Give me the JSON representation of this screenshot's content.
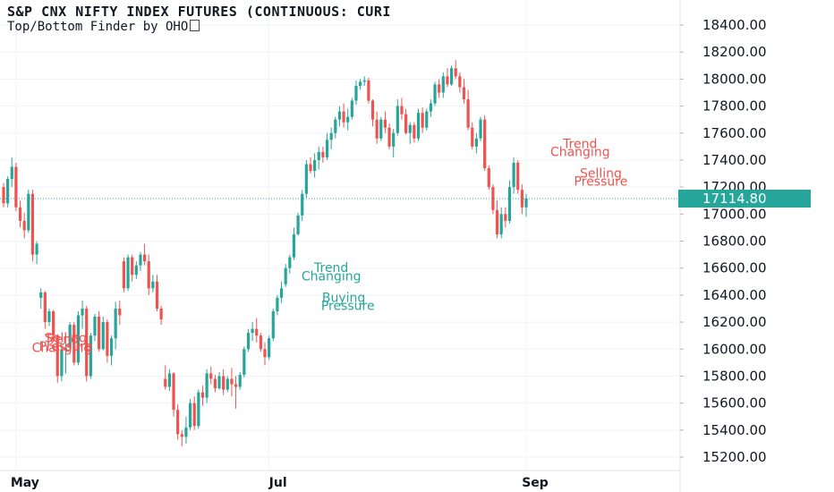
{
  "header": {
    "title": "S&P CNX NIFTY INDEX FUTURES (CONTINUOUS: CURI",
    "subtitle": "Top/Bottom Finder by OHO"
  },
  "colors": {
    "up": "#26a69a",
    "down": "#ef5350",
    "grid": "#f0f3fa",
    "axis_border": "#e0e3eb",
    "price_line": "#26a69a"
  },
  "chart_data": {
    "type": "candlestick",
    "y_axis": {
      "ticks": [
        15200,
        15400,
        15600,
        15800,
        16000,
        16200,
        16400,
        16600,
        16800,
        17000,
        17200,
        17400,
        17600,
        17800,
        18000,
        18200,
        18400
      ],
      "tick_labels": [
        "15200.00",
        "15400.00",
        "15600.00",
        "15800.00",
        "16000.00",
        "16200.00",
        "16400.00",
        "16600.00",
        "16800.00",
        "17000.00",
        "17200.00",
        "17400.00",
        "17600.00",
        "17800.00",
        "18000.00",
        "18200.00",
        "18400.00"
      ],
      "range": [
        15130,
        18490
      ],
      "side": "right"
    },
    "x_axis": {
      "labels": [
        {
          "label": "May",
          "index": 3
        },
        {
          "label": "Jul",
          "index": 64
        },
        {
          "label": "Sep",
          "index": 126
        }
      ]
    },
    "current_price": {
      "value": 17114.8,
      "label": "17114.80"
    },
    "candles": [
      [
        17200,
        17230,
        17050,
        17080
      ],
      [
        17080,
        17280,
        17050,
        17260
      ],
      [
        17260,
        17420,
        17200,
        17350
      ],
      [
        17350,
        17380,
        17020,
        17050
      ],
      [
        17050,
        17100,
        16900,
        16950
      ],
      [
        16950,
        17010,
        16820,
        16880
      ],
      [
        16880,
        17180,
        16860,
        17150
      ],
      [
        17150,
        17180,
        16650,
        16700
      ],
      [
        16700,
        16800,
        16630,
        16780
      ],
      [
        16380,
        16450,
        16300,
        16420
      ],
      [
        16420,
        16430,
        16150,
        16200
      ],
      [
        16200,
        16300,
        16170,
        16280
      ],
      [
        16280,
        16290,
        16050,
        16100
      ],
      [
        16100,
        16110,
        15750,
        15800
      ],
      [
        15800,
        16020,
        15760,
        15990
      ],
      [
        15990,
        16050,
        15820,
        16010
      ],
      [
        16010,
        16200,
        15990,
        16180
      ],
      [
        16180,
        16200,
        15880,
        15900
      ],
      [
        15900,
        16280,
        15880,
        16250
      ],
      [
        16250,
        16360,
        16150,
        16300
      ],
      [
        16300,
        16320,
        15760,
        15800
      ],
      [
        15800,
        16120,
        15780,
        16100
      ],
      [
        16100,
        16260,
        16060,
        16240
      ],
      [
        16240,
        16280,
        15980,
        16000
      ],
      [
        16000,
        16240,
        15990,
        16200
      ],
      [
        16200,
        16220,
        15900,
        15950
      ],
      [
        15950,
        16100,
        15880,
        16080
      ],
      [
        16080,
        16350,
        16000,
        16300
      ],
      [
        16300,
        16360,
        16180,
        16250
      ],
      [
        16650,
        16680,
        16420,
        16450
      ],
      [
        16450,
        16700,
        16430,
        16680
      ],
      [
        16680,
        16700,
        16500,
        16550
      ],
      [
        16550,
        16650,
        16520,
        16620
      ],
      [
        16620,
        16720,
        16580,
        16700
      ],
      [
        16700,
        16780,
        16620,
        16650
      ],
      [
        16650,
        16700,
        16400,
        16450
      ],
      [
        16450,
        16550,
        16420,
        16500
      ],
      [
        16500,
        16550,
        16280,
        16300
      ],
      [
        16300,
        16320,
        16180,
        16220
      ],
      [
        15780,
        15880,
        15700,
        15720
      ],
      [
        15720,
        15850,
        15690,
        15820
      ],
      [
        15820,
        15830,
        15500,
        15550
      ],
      [
        15550,
        15590,
        15330,
        15370
      ],
      [
        15370,
        15400,
        15280,
        15350
      ],
      [
        15350,
        15500,
        15300,
        15420
      ],
      [
        15420,
        15630,
        15400,
        15600
      ],
      [
        15600,
        15650,
        15400,
        15430
      ],
      [
        15430,
        15700,
        15410,
        15680
      ],
      [
        15680,
        15730,
        15580,
        15640
      ],
      [
        15640,
        15850,
        15600,
        15820
      ],
      [
        15820,
        15870,
        15740,
        15780
      ],
      [
        15780,
        15810,
        15680,
        15710
      ],
      [
        15710,
        15830,
        15700,
        15800
      ],
      [
        15800,
        15850,
        15660,
        15700
      ],
      [
        15700,
        15800,
        15680,
        15780
      ],
      [
        15780,
        15860,
        15650,
        15740
      ],
      [
        15740,
        15800,
        15560,
        15720
      ],
      [
        15720,
        15830,
        15700,
        15810
      ],
      [
        15810,
        16020,
        15790,
        16000
      ],
      [
        16000,
        16150,
        15980,
        16120
      ],
      [
        16120,
        16200,
        16060,
        16150
      ],
      [
        16150,
        16230,
        16050,
        16100
      ],
      [
        16100,
        16120,
        15980,
        16000
      ],
      [
        16000,
        16050,
        15880,
        15940
      ],
      [
        15940,
        16100,
        15920,
        16080
      ],
      [
        16080,
        16300,
        16060,
        16280
      ],
      [
        16280,
        16400,
        16250,
        16380
      ],
      [
        16380,
        16500,
        16340,
        16450
      ],
      [
        16480,
        16630,
        16460,
        16600
      ],
      [
        16600,
        16700,
        16560,
        16680
      ],
      [
        16680,
        16900,
        16660,
        16850
      ],
      [
        16850,
        17010,
        16840,
        16990
      ],
      [
        16990,
        17180,
        16950,
        17150
      ],
      [
        17150,
        17400,
        17120,
        17370
      ],
      [
        17370,
        17420,
        17300,
        17320
      ],
      [
        17320,
        17450,
        17270,
        17400
      ],
      [
        17400,
        17500,
        17330,
        17460
      ],
      [
        17460,
        17500,
        17380,
        17420
      ],
      [
        17420,
        17600,
        17400,
        17550
      ],
      [
        17550,
        17640,
        17480,
        17600
      ],
      [
        17600,
        17720,
        17560,
        17700
      ],
      [
        17700,
        17800,
        17650,
        17760
      ],
      [
        17760,
        17820,
        17640,
        17680
      ],
      [
        17680,
        17780,
        17620,
        17720
      ],
      [
        17720,
        17860,
        17700,
        17840
      ],
      [
        17840,
        17990,
        17810,
        17950
      ],
      [
        17950,
        18000,
        17920,
        17980
      ],
      [
        17980,
        18020,
        17950,
        17990
      ],
      [
        17990,
        18010,
        17820,
        17840
      ],
      [
        17840,
        17850,
        17650,
        17700
      ],
      [
        17700,
        17760,
        17520,
        17560
      ],
      [
        17560,
        17720,
        17540,
        17700
      ],
      [
        17700,
        17760,
        17600,
        17640
      ],
      [
        17640,
        17670,
        17480,
        17500
      ],
      [
        17500,
        17630,
        17420,
        17600
      ],
      [
        17600,
        17850,
        17580,
        17800
      ],
      [
        17800,
        17860,
        17700,
        17740
      ],
      [
        17740,
        17780,
        17590,
        17600
      ],
      [
        17600,
        17680,
        17520,
        17660
      ],
      [
        17660,
        17680,
        17530,
        17560
      ],
      [
        17560,
        17780,
        17540,
        17750
      ],
      [
        17750,
        17790,
        17600,
        17640
      ],
      [
        17640,
        17780,
        17620,
        17760
      ],
      [
        17760,
        17850,
        17720,
        17820
      ],
      [
        17820,
        17980,
        17800,
        17960
      ],
      [
        17960,
        18000,
        17860,
        17900
      ],
      [
        17900,
        18050,
        17860,
        18020
      ],
      [
        18020,
        18080,
        17940,
        17960
      ],
      [
        17960,
        18100,
        17950,
        18080
      ],
      [
        18080,
        18140,
        18000,
        18020
      ],
      [
        18020,
        18050,
        17900,
        17940
      ],
      [
        17940,
        18000,
        17820,
        17850
      ],
      [
        17850,
        17920,
        17620,
        17640
      ],
      [
        17640,
        17680,
        17480,
        17500
      ],
      [
        17500,
        17600,
        17450,
        17560
      ],
      [
        17560,
        17720,
        17540,
        17700
      ],
      [
        17700,
        17730,
        17320,
        17340
      ],
      [
        17340,
        17360,
        17180,
        17200
      ],
      [
        17200,
        17220,
        17000,
        17030
      ],
      [
        17030,
        17100,
        16820,
        16850
      ],
      [
        16850,
        17050,
        16820,
        17000
      ],
      [
        17000,
        17050,
        16900,
        16950
      ],
      [
        16950,
        17250,
        16930,
        17200
      ],
      [
        17200,
        17420,
        17150,
        17380
      ],
      [
        17380,
        17400,
        17150,
        17180
      ],
      [
        17180,
        17220,
        17000,
        17050
      ],
      [
        17050,
        17150,
        16980,
        17114.8
      ]
    ],
    "annotations": [
      {
        "text": "Trend",
        "color": "#ef5350",
        "index": 14,
        "value": 16040
      },
      {
        "text": "Changing",
        "color": "#ef5350",
        "index": 14,
        "value": 15980
      },
      {
        "text": "Selling",
        "color": "#ef5350",
        "index": 15,
        "value": 16050
      },
      {
        "text": "Pressure",
        "color": "#ef5350",
        "index": 15,
        "value": 15990
      },
      {
        "text": "Trend",
        "color": "#26a69a",
        "index": 79,
        "value": 16570
      },
      {
        "text": "Changing",
        "color": "#26a69a",
        "index": 79,
        "value": 16510
      },
      {
        "text": "Buying",
        "color": "#26a69a",
        "index": 82,
        "value": 16350
      },
      {
        "text": "Pressure",
        "color": "#26a69a",
        "index": 83,
        "value": 16290
      },
      {
        "text": "Trend",
        "color": "#ef5350",
        "index": 139,
        "value": 17490
      },
      {
        "text": "Changing",
        "color": "#ef5350",
        "index": 139,
        "value": 17430
      },
      {
        "text": "Selling",
        "color": "#ef5350",
        "index": 144,
        "value": 17270
      },
      {
        "text": "Pressure",
        "color": "#ef5350",
        "index": 144,
        "value": 17210
      }
    ]
  }
}
